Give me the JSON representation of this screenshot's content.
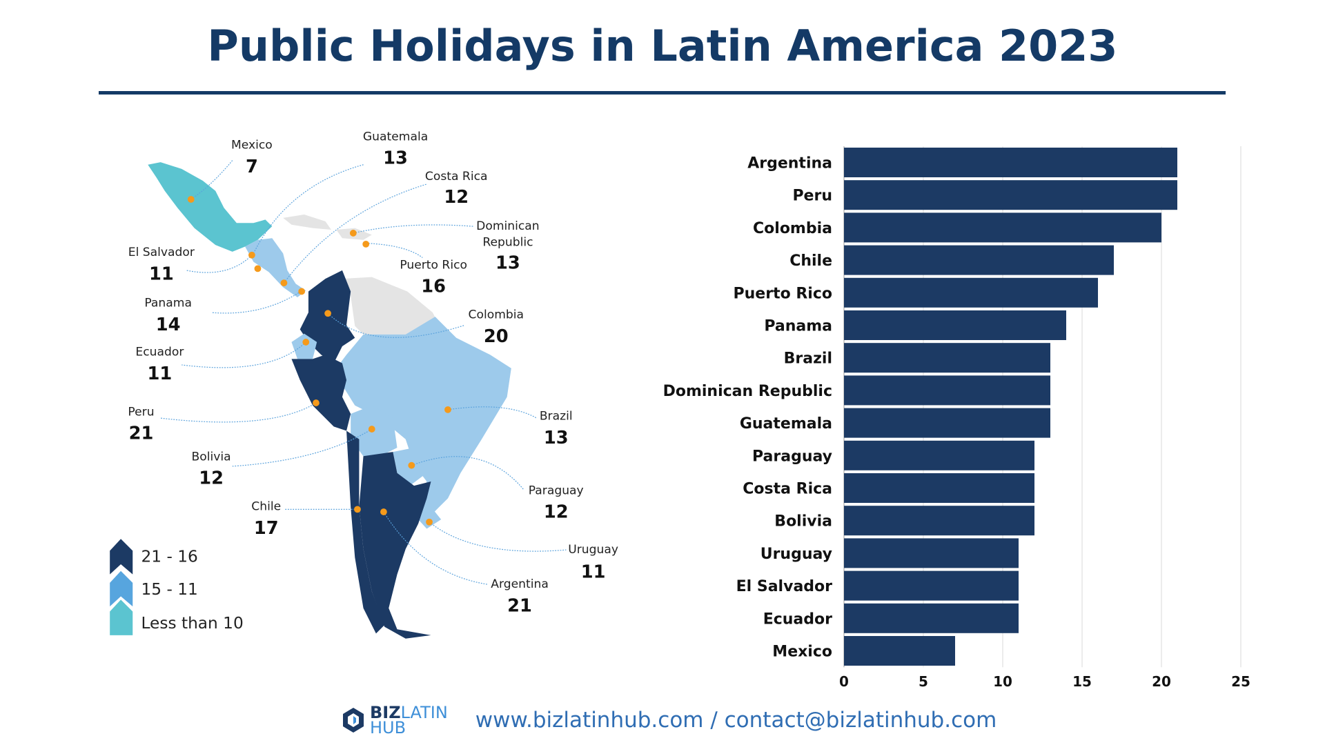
{
  "title": "Public Holidays in Latin America 2023",
  "colors": {
    "dark": "#1c3a64",
    "mid": "#9dcaeb",
    "teal": "#5bc4d0",
    "dot": "#f59a1b",
    "legend_mid": "#57a5de",
    "other": "#e4e4e4"
  },
  "map": {
    "labels": [
      {
        "country": "Mexico",
        "value": "7"
      },
      {
        "country": "Guatemala",
        "value": "13"
      },
      {
        "country": "Costa Rica",
        "value": "12"
      },
      {
        "country": "Dominican",
        "country2": "Republic",
        "value": "13"
      },
      {
        "country": "El Salvador",
        "value": "11"
      },
      {
        "country": "Puerto Rico",
        "value": "16"
      },
      {
        "country": "Panama",
        "value": "14"
      },
      {
        "country": "Colombia",
        "value": "20"
      },
      {
        "country": "Ecuador",
        "value": "11"
      },
      {
        "country": "Peru",
        "value": "21"
      },
      {
        "country": "Brazil",
        "value": "13"
      },
      {
        "country": "Bolivia",
        "value": "12"
      },
      {
        "country": "Paraguay",
        "value": "12"
      },
      {
        "country": "Chile",
        "value": "17"
      },
      {
        "country": "Uruguay",
        "value": "11"
      },
      {
        "country": "Argentina",
        "value": "21"
      }
    ],
    "legend": [
      {
        "label": "21 - 16"
      },
      {
        "label": "15 - 11"
      },
      {
        "label": "Less than 10"
      }
    ]
  },
  "chart_data": {
    "type": "bar",
    "orientation": "horizontal",
    "categories": [
      "Argentina",
      "Peru",
      "Colombia",
      "Chile",
      "Puerto Rico",
      "Panama",
      "Brazil",
      "Dominican Republic",
      "Guatemala",
      "Paraguay",
      "Costa Rica",
      "Bolivia",
      "Uruguay",
      "El Salvador",
      "Ecuador",
      "Mexico"
    ],
    "values": [
      21,
      21,
      20,
      17,
      16,
      14,
      13,
      13,
      13,
      12,
      12,
      12,
      11,
      11,
      11,
      7
    ],
    "xlim": [
      0,
      25
    ],
    "xticks": [
      "0",
      "5",
      "10",
      "15",
      "20",
      "25"
    ],
    "grid": true,
    "bar_color": "#1c3a64"
  },
  "footer": {
    "logo_biz": "BIZ",
    "logo_latin": "LATIN",
    "logo_hub": "HUB",
    "contact": "www.bizlatinhub.com / contact@bizlatinhub.com"
  }
}
